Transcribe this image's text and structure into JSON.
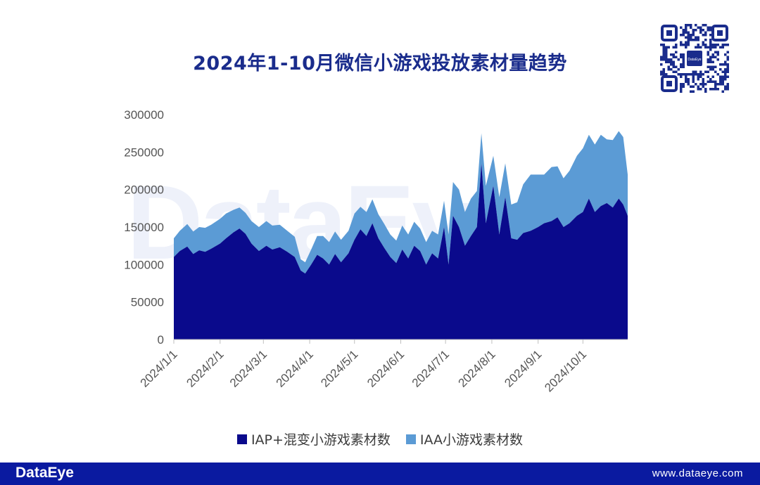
{
  "title": "2024年1-10月微信小游戏投放素材量趋势",
  "watermark": "DataEye",
  "qr_code": {
    "center_text": "DataEye"
  },
  "footer": {
    "logo": "DataEye",
    "url": "www.dataeye.com"
  },
  "colors": {
    "iap": "#0a0a8c",
    "iaa": "#5b9bd5",
    "footer_bg": "#0a1aa0",
    "title": "#1a2c8c"
  },
  "legend": [
    {
      "label": "IAP+混变小游戏素材数",
      "color": "#0a0a8c"
    },
    {
      "label": "IAA小游戏素材数",
      "color": "#5b9bd5"
    }
  ],
  "chart_data": {
    "type": "area",
    "stacked": true,
    "title": "2024年1-10月微信小游戏投放素材量趋势",
    "ylim": [
      0,
      300000
    ],
    "yticks": [
      0,
      50000,
      100000,
      150000,
      200000,
      250000,
      300000
    ],
    "xlim": [
      "2024-01-01",
      "2024-10-31"
    ],
    "x_tick_labels": [
      "2024/1/1",
      "2024/2/1",
      "2024/3/1",
      "2024/4/1",
      "2024/5/1",
      "2024/6/1",
      "2024/7/1",
      "2024/8/1",
      "2024/9/1",
      "2024/10/1"
    ],
    "x_tick_dates": [
      "2024-01-01",
      "2024-02-01",
      "2024-03-01",
      "2024-04-01",
      "2024-05-01",
      "2024-06-01",
      "2024-07-01",
      "2024-08-01",
      "2024-09-01",
      "2024-10-01"
    ],
    "legend_position": "bottom",
    "grid": false,
    "series": [
      {
        "name": "IAP+混变小游戏素材数",
        "points": [
          [
            "2024-01-01",
            110000
          ],
          [
            "2024-01-05",
            118000
          ],
          [
            "2024-01-10",
            124000
          ],
          [
            "2024-01-14",
            114000
          ],
          [
            "2024-01-18",
            119000
          ],
          [
            "2024-01-22",
            117000
          ],
          [
            "2024-01-26",
            121000
          ],
          [
            "2024-02-01",
            128000
          ],
          [
            "2024-02-05",
            135000
          ],
          [
            "2024-02-10",
            143000
          ],
          [
            "2024-02-14",
            148000
          ],
          [
            "2024-02-18",
            141000
          ],
          [
            "2024-02-22",
            128000
          ],
          [
            "2024-02-27",
            118000
          ],
          [
            "2024-03-03",
            125000
          ],
          [
            "2024-03-07",
            120000
          ],
          [
            "2024-03-12",
            123000
          ],
          [
            "2024-03-17",
            117000
          ],
          [
            "2024-03-22",
            110000
          ],
          [
            "2024-03-26",
            92000
          ],
          [
            "2024-03-29",
            88000
          ],
          [
            "2024-04-02",
            100000
          ],
          [
            "2024-04-06",
            113000
          ],
          [
            "2024-04-10",
            108000
          ],
          [
            "2024-04-14",
            100000
          ],
          [
            "2024-04-18",
            114000
          ],
          [
            "2024-04-22",
            103000
          ],
          [
            "2024-04-27",
            115000
          ],
          [
            "2024-05-01",
            133000
          ],
          [
            "2024-05-05",
            147000
          ],
          [
            "2024-05-09",
            138000
          ],
          [
            "2024-05-13",
            155000
          ],
          [
            "2024-05-17",
            135000
          ],
          [
            "2024-05-21",
            122000
          ],
          [
            "2024-05-25",
            110000
          ],
          [
            "2024-05-29",
            102000
          ],
          [
            "2024-06-02",
            120000
          ],
          [
            "2024-06-06",
            108000
          ],
          [
            "2024-06-10",
            125000
          ],
          [
            "2024-06-14",
            118000
          ],
          [
            "2024-06-18",
            100000
          ],
          [
            "2024-06-22",
            115000
          ],
          [
            "2024-06-26",
            108000
          ],
          [
            "2024-06-30",
            150000
          ],
          [
            "2024-07-03",
            100000
          ],
          [
            "2024-07-06",
            165000
          ],
          [
            "2024-07-10",
            150000
          ],
          [
            "2024-07-14",
            125000
          ],
          [
            "2024-07-18",
            138000
          ],
          [
            "2024-07-22",
            150000
          ],
          [
            "2024-07-25",
            235000
          ],
          [
            "2024-07-28",
            155000
          ],
          [
            "2024-08-02",
            205000
          ],
          [
            "2024-08-06",
            140000
          ],
          [
            "2024-08-10",
            190000
          ],
          [
            "2024-08-14",
            135000
          ],
          [
            "2024-08-18",
            133000
          ],
          [
            "2024-08-22",
            142000
          ],
          [
            "2024-08-27",
            145000
          ],
          [
            "2024-09-01",
            150000
          ],
          [
            "2024-09-05",
            155000
          ],
          [
            "2024-09-10",
            158000
          ],
          [
            "2024-09-14",
            163000
          ],
          [
            "2024-09-18",
            150000
          ],
          [
            "2024-09-22",
            155000
          ],
          [
            "2024-09-27",
            165000
          ],
          [
            "2024-10-01",
            170000
          ],
          [
            "2024-10-05",
            188000
          ],
          [
            "2024-10-09",
            170000
          ],
          [
            "2024-10-13",
            178000
          ],
          [
            "2024-10-17",
            182000
          ],
          [
            "2024-10-21",
            176000
          ],
          [
            "2024-10-25",
            188000
          ],
          [
            "2024-10-28",
            180000
          ],
          [
            "2024-10-31",
            165000
          ]
        ]
      },
      {
        "name": "IAA小游戏素材数",
        "points": [
          [
            "2024-01-01",
            25000
          ],
          [
            "2024-01-05",
            27000
          ],
          [
            "2024-01-10",
            30000
          ],
          [
            "2024-01-14",
            30000
          ],
          [
            "2024-01-18",
            31000
          ],
          [
            "2024-01-22",
            32000
          ],
          [
            "2024-01-26",
            32000
          ],
          [
            "2024-02-01",
            33000
          ],
          [
            "2024-02-05",
            33000
          ],
          [
            "2024-02-10",
            30000
          ],
          [
            "2024-02-14",
            28000
          ],
          [
            "2024-02-18",
            28000
          ],
          [
            "2024-02-22",
            30000
          ],
          [
            "2024-02-27",
            32000
          ],
          [
            "2024-03-03",
            33000
          ],
          [
            "2024-03-07",
            32000
          ],
          [
            "2024-03-12",
            30000
          ],
          [
            "2024-03-17",
            28000
          ],
          [
            "2024-03-22",
            27000
          ],
          [
            "2024-03-26",
            15000
          ],
          [
            "2024-03-29",
            15000
          ],
          [
            "2024-04-02",
            20000
          ],
          [
            "2024-04-06",
            25000
          ],
          [
            "2024-04-10",
            30000
          ],
          [
            "2024-04-14",
            30000
          ],
          [
            "2024-04-18",
            30000
          ],
          [
            "2024-04-22",
            30000
          ],
          [
            "2024-04-27",
            30000
          ],
          [
            "2024-05-01",
            35000
          ],
          [
            "2024-05-05",
            30000
          ],
          [
            "2024-05-09",
            32000
          ],
          [
            "2024-05-13",
            32000
          ],
          [
            "2024-05-17",
            32000
          ],
          [
            "2024-05-21",
            32000
          ],
          [
            "2024-05-25",
            30000
          ],
          [
            "2024-05-29",
            30000
          ],
          [
            "2024-06-02",
            32000
          ],
          [
            "2024-06-06",
            32000
          ],
          [
            "2024-06-10",
            32000
          ],
          [
            "2024-06-14",
            30000
          ],
          [
            "2024-06-18",
            30000
          ],
          [
            "2024-06-22",
            30000
          ],
          [
            "2024-06-26",
            32000
          ],
          [
            "2024-06-30",
            35000
          ],
          [
            "2024-07-03",
            40000
          ],
          [
            "2024-07-06",
            45000
          ],
          [
            "2024-07-10",
            50000
          ],
          [
            "2024-07-14",
            45000
          ],
          [
            "2024-07-18",
            50000
          ],
          [
            "2024-07-22",
            48000
          ],
          [
            "2024-07-25",
            40000
          ],
          [
            "2024-07-28",
            50000
          ],
          [
            "2024-08-02",
            40000
          ],
          [
            "2024-08-06",
            50000
          ],
          [
            "2024-08-10",
            45000
          ],
          [
            "2024-08-14",
            45000
          ],
          [
            "2024-08-18",
            50000
          ],
          [
            "2024-08-22",
            65000
          ],
          [
            "2024-08-27",
            75000
          ],
          [
            "2024-09-01",
            70000
          ],
          [
            "2024-09-05",
            65000
          ],
          [
            "2024-09-10",
            72000
          ],
          [
            "2024-09-14",
            68000
          ],
          [
            "2024-09-18",
            65000
          ],
          [
            "2024-09-22",
            70000
          ],
          [
            "2024-09-27",
            80000
          ],
          [
            "2024-10-01",
            85000
          ],
          [
            "2024-10-05",
            85000
          ],
          [
            "2024-10-09",
            90000
          ],
          [
            "2024-10-13",
            95000
          ],
          [
            "2024-10-17",
            85000
          ],
          [
            "2024-10-21",
            90000
          ],
          [
            "2024-10-25",
            90000
          ],
          [
            "2024-10-28",
            90000
          ],
          [
            "2024-10-31",
            55000
          ]
        ]
      }
    ]
  }
}
